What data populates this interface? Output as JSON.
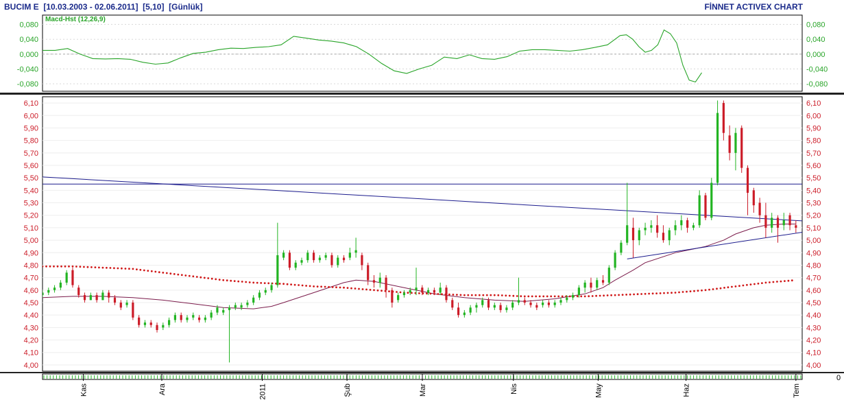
{
  "header": {
    "title_left": "BUCIM E  [10.03.2003 - 02.06.2011]  [5,10]  [Günlük]",
    "title_right": "FİNNET ACTIVEX CHART"
  },
  "chart_data": [
    {
      "type": "line",
      "legend": "Macd-Hst (12,26,9)",
      "yticks": [
        "0,080",
        "0,040",
        "0,000",
        "-0,040",
        "-0,080"
      ],
      "ytick_values": [
        0.08,
        0.04,
        0.0,
        -0.04,
        -0.08
      ],
      "ylim": [
        -0.1,
        0.105
      ],
      "zero_line": true,
      "series": [
        {
          "x": [
            0,
            4,
            8,
            12,
            16,
            20,
            24,
            28,
            32,
            36,
            40,
            44,
            48,
            52,
            56,
            60,
            64,
            68,
            72,
            76,
            80,
            84,
            88,
            92,
            96,
            100,
            104,
            108,
            112,
            116,
            120,
            124,
            128,
            132,
            136,
            140,
            144,
            148,
            152,
            156,
            160,
            164,
            168,
            172,
            176,
            180,
            184,
            186,
            188,
            190,
            192,
            194,
            196,
            198,
            200,
            202,
            204,
            206,
            208,
            210
          ],
          "values": [
            0.01,
            0.01,
            0.015,
            0.0,
            -0.012,
            -0.013,
            -0.012,
            -0.014,
            -0.022,
            -0.027,
            -0.024,
            -0.01,
            0.002,
            0.005,
            0.012,
            0.016,
            0.015,
            0.018,
            0.02,
            0.025,
            0.048,
            0.043,
            0.038,
            0.035,
            0.03,
            0.02,
            0.0,
            -0.025,
            -0.045,
            -0.052,
            -0.04,
            -0.03,
            -0.008,
            -0.012,
            -0.002,
            -0.012,
            -0.014,
            -0.007,
            0.008,
            0.012,
            0.012,
            0.01,
            0.008,
            0.012,
            0.018,
            0.025,
            0.05,
            0.052,
            0.04,
            0.02,
            0.005,
            0.01,
            0.025,
            0.065,
            0.055,
            0.03,
            -0.03,
            -0.07,
            -0.075,
            -0.05
          ]
        }
      ]
    },
    {
      "type": "candlestick",
      "yticks": [
        "6,10",
        "6,00",
        "5,90",
        "5,80",
        "5,70",
        "5,60",
        "5,50",
        "5,40",
        "5,30",
        "5,20",
        "5,10",
        "5,00",
        "4,90",
        "4,80",
        "4,70",
        "4,60",
        "4,50",
        "4,40",
        "4,30",
        "4,20",
        "4,10",
        "4,00"
      ],
      "ytick_values": [
        6.1,
        6.0,
        5.9,
        5.8,
        5.7,
        5.6,
        5.5,
        5.4,
        5.3,
        5.2,
        5.1,
        5.0,
        4.9,
        4.8,
        4.7,
        4.6,
        4.5,
        4.4,
        4.3,
        4.2,
        4.1,
        4.0
      ],
      "ylim": [
        3.95,
        6.15
      ],
      "xlim": [
        0,
        242
      ],
      "xticks": [
        {
          "label": "Kas",
          "x": 13
        },
        {
          "label": "Ara",
          "x": 38
        },
        {
          "label": "2011",
          "x": 70
        },
        {
          "label": "Şub",
          "x": 97
        },
        {
          "label": "Mar",
          "x": 121
        },
        {
          "label": "Nis",
          "x": 150
        },
        {
          "label": "May",
          "x": 177
        },
        {
          "label": "Haz",
          "x": 205
        },
        {
          "label": "Tem",
          "x": 240
        }
      ],
      "candles": [
        [
          0,
          4.56,
          4.6,
          4.58,
          4.54
        ],
        [
          2,
          4.58,
          4.62,
          4.6,
          4.56
        ],
        [
          4,
          4.6,
          4.64,
          4.62,
          4.58
        ],
        [
          6,
          4.62,
          4.68,
          4.66,
          4.6
        ],
        [
          8,
          4.66,
          4.76,
          4.74,
          4.64
        ],
        [
          10,
          4.76,
          4.78,
          4.64,
          4.62
        ],
        [
          12,
          4.62,
          4.64,
          4.56,
          4.54
        ],
        [
          14,
          4.56,
          4.58,
          4.52,
          4.5
        ],
        [
          16,
          4.52,
          4.58,
          4.56,
          4.52
        ],
        [
          18,
          4.56,
          4.58,
          4.52,
          4.5
        ],
        [
          20,
          4.52,
          4.6,
          4.58,
          4.52
        ],
        [
          22,
          4.58,
          4.6,
          4.54,
          4.5
        ],
        [
          24,
          4.54,
          4.56,
          4.5,
          4.48
        ],
        [
          26,
          4.5,
          4.52,
          4.46,
          4.44
        ],
        [
          28,
          4.48,
          4.52,
          4.5,
          4.46
        ],
        [
          30,
          4.5,
          4.52,
          4.38,
          4.36
        ],
        [
          32,
          4.38,
          4.4,
          4.32,
          4.3
        ],
        [
          34,
          4.32,
          4.36,
          4.34,
          4.3
        ],
        [
          36,
          4.34,
          4.36,
          4.32,
          4.3
        ],
        [
          38,
          4.32,
          4.34,
          4.28,
          4.26
        ],
        [
          40,
          4.3,
          4.34,
          4.32,
          4.28
        ],
        [
          42,
          4.32,
          4.38,
          4.36,
          4.3
        ],
        [
          44,
          4.36,
          4.42,
          4.4,
          4.34
        ],
        [
          46,
          4.4,
          4.42,
          4.36,
          4.34
        ],
        [
          48,
          4.36,
          4.4,
          4.38,
          4.34
        ],
        [
          50,
          4.38,
          4.42,
          4.4,
          4.36
        ],
        [
          52,
          4.38,
          4.4,
          4.36,
          4.34
        ],
        [
          54,
          4.36,
          4.4,
          4.38,
          4.34
        ],
        [
          56,
          4.38,
          4.44,
          4.42,
          4.36
        ],
        [
          58,
          4.42,
          4.48,
          4.46,
          4.4
        ],
        [
          60,
          4.42,
          4.46,
          4.44,
          4.4
        ],
        [
          62,
          4.44,
          4.48,
          4.46,
          4.02
        ],
        [
          64,
          4.46,
          4.5,
          4.48,
          4.44
        ],
        [
          66,
          4.46,
          4.5,
          4.48,
          4.44
        ],
        [
          68,
          4.48,
          4.52,
          4.5,
          4.46
        ],
        [
          70,
          4.5,
          4.56,
          4.54,
          4.48
        ],
        [
          72,
          4.54,
          4.6,
          4.58,
          4.52
        ],
        [
          74,
          4.58,
          4.62,
          4.6,
          4.56
        ],
        [
          76,
          4.6,
          4.66,
          4.64,
          4.58
        ],
        [
          78,
          4.64,
          5.14,
          4.88,
          4.62
        ],
        [
          80,
          4.86,
          4.92,
          4.9,
          4.84
        ],
        [
          82,
          4.9,
          4.92,
          4.78,
          4.76
        ],
        [
          84,
          4.78,
          4.84,
          4.82,
          4.76
        ],
        [
          86,
          4.82,
          4.86,
          4.84,
          4.8
        ],
        [
          88,
          4.84,
          4.92,
          4.9,
          4.82
        ],
        [
          90,
          4.9,
          4.92,
          4.84,
          4.82
        ],
        [
          92,
          4.84,
          4.88,
          4.86,
          4.82
        ],
        [
          94,
          4.86,
          4.9,
          4.88,
          4.84
        ],
        [
          96,
          4.88,
          4.9,
          4.8,
          4.78
        ],
        [
          98,
          4.8,
          4.88,
          4.86,
          4.78
        ],
        [
          100,
          4.86,
          4.88,
          4.84,
          4.82
        ],
        [
          102,
          4.86,
          4.94,
          4.9,
          4.84
        ],
        [
          104,
          4.9,
          5.02,
          4.92,
          4.86
        ],
        [
          106,
          4.88,
          4.9,
          4.8,
          4.76
        ],
        [
          108,
          4.8,
          4.82,
          4.68,
          4.64
        ],
        [
          110,
          4.68,
          4.72,
          4.66,
          4.62
        ],
        [
          112,
          4.66,
          4.74,
          4.7,
          4.62
        ],
        [
          114,
          4.7,
          4.72,
          4.6,
          4.54
        ],
        [
          116,
          4.6,
          4.62,
          4.5,
          4.46
        ],
        [
          118,
          4.52,
          4.58,
          4.56,
          4.5
        ],
        [
          120,
          4.56,
          4.6,
          4.58,
          4.54
        ],
        [
          122,
          4.58,
          4.62,
          4.6,
          4.56
        ],
        [
          124,
          4.6,
          4.78,
          4.62,
          4.56
        ],
        [
          126,
          4.62,
          4.64,
          4.58,
          4.56
        ],
        [
          128,
          4.58,
          4.62,
          4.6,
          4.56
        ],
        [
          130,
          4.6,
          4.62,
          4.58,
          4.56
        ],
        [
          132,
          4.58,
          4.66,
          4.62,
          4.56
        ],
        [
          134,
          4.62,
          4.64,
          4.52,
          4.5
        ],
        [
          136,
          4.52,
          4.54,
          4.46,
          4.44
        ],
        [
          138,
          4.46,
          4.5,
          4.4,
          4.38
        ],
        [
          140,
          4.4,
          4.44,
          4.42,
          4.38
        ],
        [
          142,
          4.42,
          4.48,
          4.46,
          4.4
        ],
        [
          144,
          4.46,
          4.5,
          4.48,
          4.42
        ],
        [
          146,
          4.48,
          4.54,
          4.52,
          4.46
        ],
        [
          148,
          4.52,
          4.54,
          4.46,
          4.44
        ],
        [
          150,
          4.46,
          4.5,
          4.48,
          4.44
        ],
        [
          152,
          4.48,
          4.5,
          4.44,
          4.42
        ],
        [
          154,
          4.44,
          4.48,
          4.46,
          4.42
        ],
        [
          156,
          4.46,
          4.52,
          4.5,
          4.44
        ],
        [
          158,
          4.5,
          4.7,
          4.52,
          4.48
        ],
        [
          160,
          4.52,
          4.54,
          4.5,
          4.48
        ],
        [
          162,
          4.5,
          4.52,
          4.48,
          4.46
        ],
        [
          164,
          4.48,
          4.5,
          4.46,
          4.44
        ],
        [
          166,
          4.48,
          4.52,
          4.5,
          4.46
        ],
        [
          168,
          4.5,
          4.52,
          4.48,
          4.46
        ],
        [
          170,
          4.48,
          4.52,
          4.5,
          4.46
        ],
        [
          172,
          4.5,
          4.54,
          4.52,
          4.48
        ],
        [
          174,
          4.52,
          4.56,
          4.54,
          4.5
        ],
        [
          176,
          4.54,
          4.58,
          4.56,
          4.52
        ],
        [
          178,
          4.56,
          4.64,
          4.62,
          4.54
        ],
        [
          180,
          4.62,
          4.68,
          4.66,
          4.58
        ],
        [
          182,
          4.66,
          4.7,
          4.62,
          4.58
        ],
        [
          184,
          4.62,
          4.7,
          4.68,
          4.6
        ],
        [
          186,
          4.68,
          4.72,
          4.66,
          4.64
        ],
        [
          188,
          4.66,
          4.8,
          4.78,
          4.64
        ],
        [
          190,
          4.78,
          4.92,
          4.9,
          4.76
        ],
        [
          192,
          4.9,
          5.0,
          4.98,
          4.88
        ],
        [
          194,
          4.98,
          5.46,
          5.12,
          4.96
        ],
        [
          196,
          5.1,
          5.18,
          5.0,
          4.86
        ],
        [
          198,
          5.0,
          5.1,
          5.08,
          4.96
        ],
        [
          200,
          5.08,
          5.14,
          5.1,
          5.04
        ],
        [
          202,
          5.1,
          5.16,
          5.12,
          5.06
        ],
        [
          204,
          5.12,
          5.2,
          5.06,
          5.02
        ],
        [
          206,
          5.06,
          5.12,
          5.0,
          4.98
        ],
        [
          208,
          5.0,
          5.1,
          5.08,
          4.96
        ],
        [
          210,
          5.08,
          5.16,
          5.12,
          5.04
        ],
        [
          212,
          5.12,
          5.2,
          5.16,
          5.08
        ],
        [
          214,
          5.16,
          5.18,
          5.1,
          5.06
        ],
        [
          216,
          5.1,
          5.14,
          5.12,
          5.08
        ],
        [
          218,
          5.12,
          5.4,
          5.36,
          5.1
        ],
        [
          220,
          5.36,
          5.38,
          5.18,
          5.16
        ],
        [
          222,
          5.18,
          5.5,
          5.46,
          5.16
        ],
        [
          224,
          5.46,
          6.12,
          6.02,
          5.44
        ],
        [
          226,
          6.1,
          6.12,
          5.86,
          5.8
        ],
        [
          228,
          5.84,
          5.92,
          5.7,
          5.64
        ],
        [
          230,
          5.7,
          5.9,
          5.86,
          5.56
        ],
        [
          232,
          5.9,
          5.92,
          5.58,
          5.54
        ],
        [
          234,
          5.58,
          5.6,
          5.38,
          5.2
        ],
        [
          236,
          5.4,
          5.42,
          5.28,
          5.22
        ],
        [
          238,
          5.3,
          5.34,
          5.2,
          5.14
        ],
        [
          240,
          5.2,
          5.3,
          5.1,
          5.02
        ],
        [
          242,
          5.1,
          5.22,
          5.18,
          5.06
        ],
        [
          244,
          5.18,
          5.2,
          5.1,
          4.98
        ],
        [
          246,
          5.12,
          5.22,
          5.16,
          5.08
        ],
        [
          248,
          5.2,
          5.22,
          5.12,
          5.08
        ],
        [
          250,
          5.12,
          5.16,
          5.1,
          5.06
        ]
      ],
      "trendlines": [
        {
          "x1": -2,
          "y1": 5.51,
          "x2": 270,
          "y2": 5.13,
          "color": "#1a1a8c"
        },
        {
          "x1": 194,
          "y1": 4.85,
          "x2": 270,
          "y2": 5.13,
          "color": "#1a1a8c"
        },
        {
          "x1": -2,
          "y1": 5.45,
          "x2": 272,
          "y2": 5.45,
          "color": "#1a1a8c"
        }
      ],
      "moving_averages": [
        {
          "color": "#7a1a4a",
          "style": "solid",
          "x": [
            0,
            10,
            20,
            30,
            40,
            50,
            60,
            70,
            76,
            80,
            90,
            100,
            104,
            110,
            120,
            130,
            140,
            150,
            160,
            170,
            180,
            186,
            190,
            196,
            200,
            210,
            220,
            226,
            230,
            236,
            240,
            246,
            250
          ],
          "values": [
            4.54,
            4.55,
            4.55,
            4.54,
            4.52,
            4.49,
            4.46,
            4.45,
            4.47,
            4.5,
            4.58,
            4.66,
            4.68,
            4.67,
            4.62,
            4.57,
            4.54,
            4.52,
            4.51,
            4.53,
            4.57,
            4.62,
            4.68,
            4.76,
            4.82,
            4.9,
            4.95,
            5.0,
            5.05,
            5.1,
            5.12,
            5.13,
            5.13
          ]
        },
        {
          "color": "#d01818",
          "style": "dotted",
          "x": [
            0,
            10,
            20,
            30,
            40,
            50,
            60,
            70,
            80,
            90,
            100,
            110,
            120,
            130,
            140,
            150,
            160,
            170,
            180,
            190,
            200,
            210,
            220,
            230,
            240,
            250
          ],
          "values": [
            4.79,
            4.79,
            4.78,
            4.77,
            4.74,
            4.71,
            4.68,
            4.66,
            4.65,
            4.63,
            4.62,
            4.6,
            4.58,
            4.57,
            4.56,
            4.56,
            4.55,
            4.55,
            4.55,
            4.56,
            4.57,
            4.58,
            4.6,
            4.63,
            4.66,
            4.68
          ]
        }
      ]
    }
  ],
  "colors": {
    "up_candle": "#22b422",
    "down_candle": "#cc1c28",
    "macd_line": "#27a427",
    "tick_text": "#cc1c28",
    "macd_tick_text": "#27a427",
    "grid": "#d8d8d8",
    "header_text": "#1a2a8a"
  },
  "bottom_right_tick": "0"
}
